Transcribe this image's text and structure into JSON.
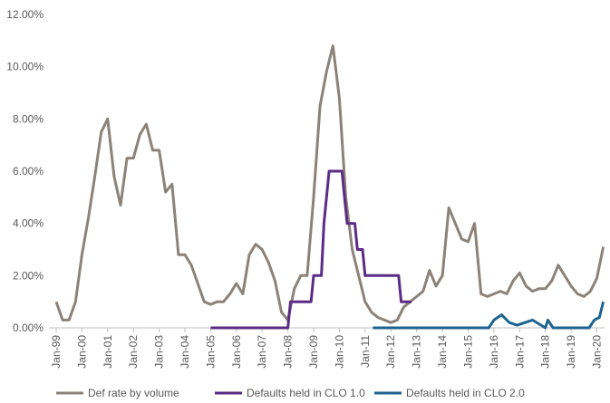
{
  "chart_data": {
    "type": "line",
    "xlim": [
      1999,
      2020.3
    ],
    "xticks": [
      {
        "value": 1999,
        "label": "Jan-99"
      },
      {
        "value": 2000,
        "label": "Jan-00"
      },
      {
        "value": 2001,
        "label": "Jan-01"
      },
      {
        "value": 2002,
        "label": "Jan-02"
      },
      {
        "value": 2003,
        "label": "Jan-03"
      },
      {
        "value": 2004,
        "label": "Jan-04"
      },
      {
        "value": 2005,
        "label": "Jan-05"
      },
      {
        "value": 2006,
        "label": "Jan-06"
      },
      {
        "value": 2007,
        "label": "Jan-07"
      },
      {
        "value": 2008,
        "label": "Jan-08"
      },
      {
        "value": 2009,
        "label": "Jan-09"
      },
      {
        "value": 2010,
        "label": "Jan-10"
      },
      {
        "value": 2011,
        "label": "Jan-11"
      },
      {
        "value": 2012,
        "label": "Jan-12"
      },
      {
        "value": 2013,
        "label": "Jan-13"
      },
      {
        "value": 2014,
        "label": "Jan-14"
      },
      {
        "value": 2015,
        "label": "Jan-15"
      },
      {
        "value": 2016,
        "label": "Jan-16"
      },
      {
        "value": 2017,
        "label": "Jan-17"
      },
      {
        "value": 2018,
        "label": "Jan-18"
      },
      {
        "value": 2019,
        "label": "Jan-19"
      },
      {
        "value": 2020,
        "label": "Jan-20"
      }
    ],
    "ylim": [
      0,
      12
    ],
    "yticks": [
      {
        "value": 0,
        "label": "0.00%"
      },
      {
        "value": 2,
        "label": "2.00%"
      },
      {
        "value": 4,
        "label": "4.00%"
      },
      {
        "value": 6,
        "label": "6.00%"
      },
      {
        "value": 8,
        "label": "8.00%"
      },
      {
        "value": 10,
        "label": "10.00%"
      },
      {
        "value": 12,
        "label": "12.00%"
      }
    ],
    "legend": "bottom",
    "series": [
      {
        "name": "Def rate by volume",
        "color": "#8c8279",
        "x": [
          1999,
          1999.25,
          1999.5,
          1999.75,
          2000,
          2000.25,
          2000.5,
          2000.75,
          2001,
          2001.25,
          2001.5,
          2001.75,
          2002,
          2002.25,
          2002.5,
          2002.75,
          2003,
          2003.25,
          2003.5,
          2003.75,
          2004,
          2004.25,
          2004.5,
          2004.75,
          2005,
          2005.25,
          2005.5,
          2005.75,
          2006,
          2006.25,
          2006.5,
          2006.75,
          2007,
          2007.25,
          2007.5,
          2007.75,
          2008,
          2008.25,
          2008.5,
          2008.75,
          2009,
          2009.25,
          2009.5,
          2009.75,
          2010,
          2010.25,
          2010.5,
          2010.75,
          2011,
          2011.25,
          2011.5,
          2011.75,
          2012,
          2012.25,
          2012.5,
          2012.75,
          2013,
          2013.25,
          2013.5,
          2013.75,
          2014,
          2014.25,
          2014.5,
          2014.75,
          2015,
          2015.25,
          2015.5,
          2015.75,
          2016,
          2016.25,
          2016.5,
          2016.75,
          2017,
          2017.25,
          2017.5,
          2017.75,
          2018,
          2018.25,
          2018.5,
          2018.75,
          2019,
          2019.25,
          2019.5,
          2019.75,
          2020,
          2020.25
        ],
        "values": [
          1.0,
          0.3,
          0.3,
          1.0,
          2.8,
          4.2,
          5.8,
          7.5,
          8.0,
          5.8,
          4.7,
          6.5,
          6.5,
          7.4,
          7.8,
          6.8,
          6.8,
          5.2,
          5.5,
          2.8,
          2.8,
          2.4,
          1.7,
          1.0,
          0.9,
          1.0,
          1.0,
          1.3,
          1.7,
          1.3,
          2.8,
          3.2,
          3.0,
          2.5,
          1.8,
          0.6,
          0.3,
          1.5,
          2.0,
          2.0,
          5.0,
          8.5,
          9.8,
          10.8,
          8.8,
          5.0,
          3.0,
          2.0,
          1.0,
          0.6,
          0.4,
          0.3,
          0.2,
          0.3,
          0.8,
          1.0,
          1.2,
          1.4,
          2.2,
          1.6,
          2.0,
          4.6,
          4.0,
          3.4,
          3.3,
          4.0,
          1.3,
          1.2,
          1.3,
          1.4,
          1.3,
          1.8,
          2.1,
          1.6,
          1.4,
          1.5,
          1.5,
          1.8,
          2.4,
          2.0,
          1.6,
          1.3,
          1.2,
          1.4,
          1.9,
          3.1
        ]
      },
      {
        "name": "Defaults held in CLO 1.0",
        "color": "#5b2c86",
        "x": [
          2005,
          2008,
          2008.1,
          2008.9,
          2009,
          2009.3,
          2009.4,
          2009.6,
          2010.1,
          2010.2,
          2010.3,
          2010.6,
          2010.7,
          2010.9,
          2011,
          2012.3,
          2012.4,
          2012.8
        ],
        "values": [
          0,
          0,
          1,
          1,
          2,
          2,
          4,
          6,
          6,
          5,
          4,
          4,
          3,
          3,
          2,
          2,
          1,
          1
        ]
      },
      {
        "name": "Defaults held in CLO 2.0",
        "color": "#1f6391",
        "x": [
          2011.3,
          2015.8,
          2016,
          2016.3,
          2016.6,
          2016.9,
          2017.5,
          2018,
          2018.1,
          2018.3,
          2019.7,
          2019.9,
          2020.1,
          2020.25
        ],
        "values": [
          0,
          0,
          0.3,
          0.5,
          0.2,
          0.1,
          0.3,
          0,
          0.3,
          0,
          0,
          0.3,
          0.4,
          1.0
        ]
      }
    ]
  }
}
